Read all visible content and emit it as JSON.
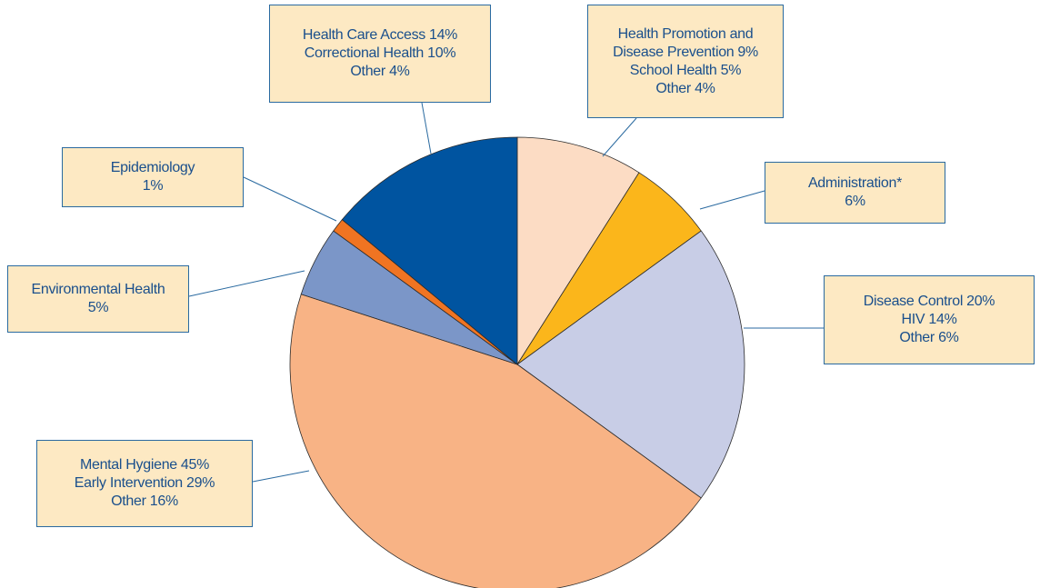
{
  "chart_data": {
    "type": "pie",
    "categories": [
      "Health Promotion and Disease Prevention",
      "Administration*",
      "Disease Control",
      "Mental Hygiene",
      "Environmental Health",
      "Epidemiology",
      "Health Care Access"
    ],
    "values": [
      9,
      6,
      20,
      45,
      5,
      1,
      14
    ],
    "value_labels": [
      "9%",
      "6%",
      "20%",
      "45%",
      "5%",
      "1%",
      "14%"
    ],
    "colors": [
      "#fcdcc4",
      "#fbb61b",
      "#c8cde6",
      "#f8b385",
      "#7b96c8",
      "#f07422",
      "#0054a0"
    ],
    "breakdown": [
      [
        "School Health 5%",
        "Other 4%"
      ],
      [],
      [
        "HIV 14%",
        "Other 6%"
      ],
      [
        "Early Intervention 29%",
        "Other 16%"
      ],
      [],
      [],
      [
        "Correctional Health 10%",
        "Other 4%"
      ]
    ]
  }
}
